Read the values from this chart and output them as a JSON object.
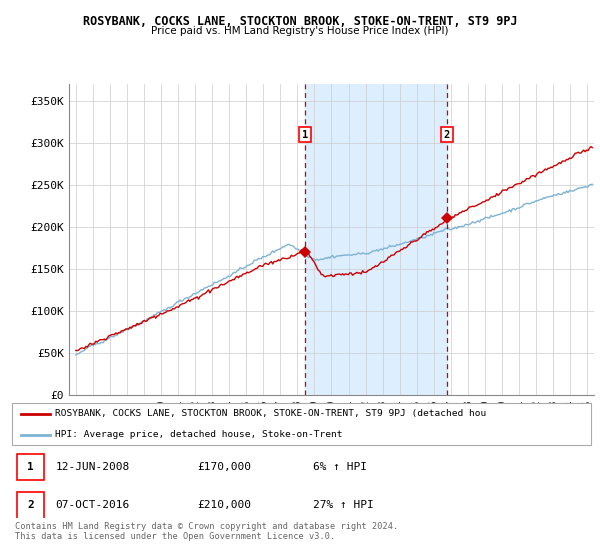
{
  "title": "ROSYBANK, COCKS LANE, STOCKTON BROOK, STOKE-ON-TRENT, ST9 9PJ",
  "subtitle": "Price paid vs. HM Land Registry's House Price Index (HPI)",
  "ylabel_ticks": [
    "£0",
    "£50K",
    "£100K",
    "£150K",
    "£200K",
    "£250K",
    "£300K",
    "£350K"
  ],
  "ytick_values": [
    0,
    50000,
    100000,
    150000,
    200000,
    250000,
    300000,
    350000
  ],
  "ylim": [
    0,
    370000
  ],
  "xlim_start": 1994.6,
  "xlim_end": 2025.4,
  "sale1_x": 2008.45,
  "sale1_y": 170000,
  "sale1_label": "1",
  "sale2_x": 2016.77,
  "sale2_y": 210000,
  "sale2_label": "2",
  "line_color_red": "#cc0000",
  "line_color_blue": "#7fb3d3",
  "shaded_region_color": "#ddeeff",
  "dashed_color": "#cc0000",
  "grid_color": "#cccccc",
  "bg_color": "#ffffff",
  "legend_line1": "ROSYBANK, COCKS LANE, STOCKTON BROOK, STOKE-ON-TRENT, ST9 9PJ (detached hou",
  "legend_line2": "HPI: Average price, detached house, Stoke-on-Trent",
  "table_row1_num": "1",
  "table_row1_date": "12-JUN-2008",
  "table_row1_price": "£170,000",
  "table_row1_hpi": "6% ↑ HPI",
  "table_row2_num": "2",
  "table_row2_date": "07-OCT-2016",
  "table_row2_price": "£210,000",
  "table_row2_hpi": "27% ↑ HPI",
  "footer": "Contains HM Land Registry data © Crown copyright and database right 2024.\nThis data is licensed under the Open Government Licence v3.0."
}
